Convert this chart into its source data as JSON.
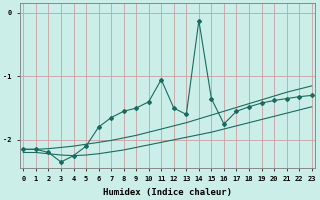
{
  "xlabel": "Humidex (Indice chaleur)",
  "bg_color": "#cceee8",
  "line_color": "#1a6b5e",
  "grid_color_h": "#c9a0a0",
  "grid_color_v": "#c9a0a0",
  "xticks": [
    0,
    1,
    2,
    3,
    4,
    5,
    6,
    7,
    8,
    9,
    10,
    11,
    12,
    13,
    14,
    15,
    16,
    17,
    18,
    19,
    20,
    21,
    22,
    23
  ],
  "yticks": [
    0,
    -1,
    -2
  ],
  "ylim": [
    -2.45,
    0.15
  ],
  "xlim": [
    -0.3,
    23.3
  ],
  "smooth_upper_y": [
    -2.15,
    -2.15,
    -2.14,
    -2.12,
    -2.1,
    -2.07,
    -2.04,
    -2.01,
    -1.97,
    -1.93,
    -1.88,
    -1.83,
    -1.78,
    -1.73,
    -1.67,
    -1.61,
    -1.55,
    -1.49,
    -1.43,
    -1.37,
    -1.31,
    -1.25,
    -1.2,
    -1.15
  ],
  "smooth_lower_y": [
    -2.2,
    -2.2,
    -2.22,
    -2.24,
    -2.25,
    -2.24,
    -2.22,
    -2.19,
    -2.16,
    -2.12,
    -2.08,
    -2.04,
    -2.0,
    -1.96,
    -1.92,
    -1.88,
    -1.83,
    -1.78,
    -1.73,
    -1.68,
    -1.63,
    -1.58,
    -1.53,
    -1.48
  ],
  "main_y": [
    -2.15,
    -2.15,
    -2.2,
    -2.35,
    -2.25,
    -2.1,
    -1.8,
    -1.65,
    -1.55,
    -1.5,
    -1.4,
    -1.05,
    -1.5,
    -1.6,
    -0.12,
    -1.35,
    -1.75,
    -1.55,
    -1.48,
    -1.42,
    -1.38,
    -1.35,
    -1.32,
    -1.3
  ]
}
